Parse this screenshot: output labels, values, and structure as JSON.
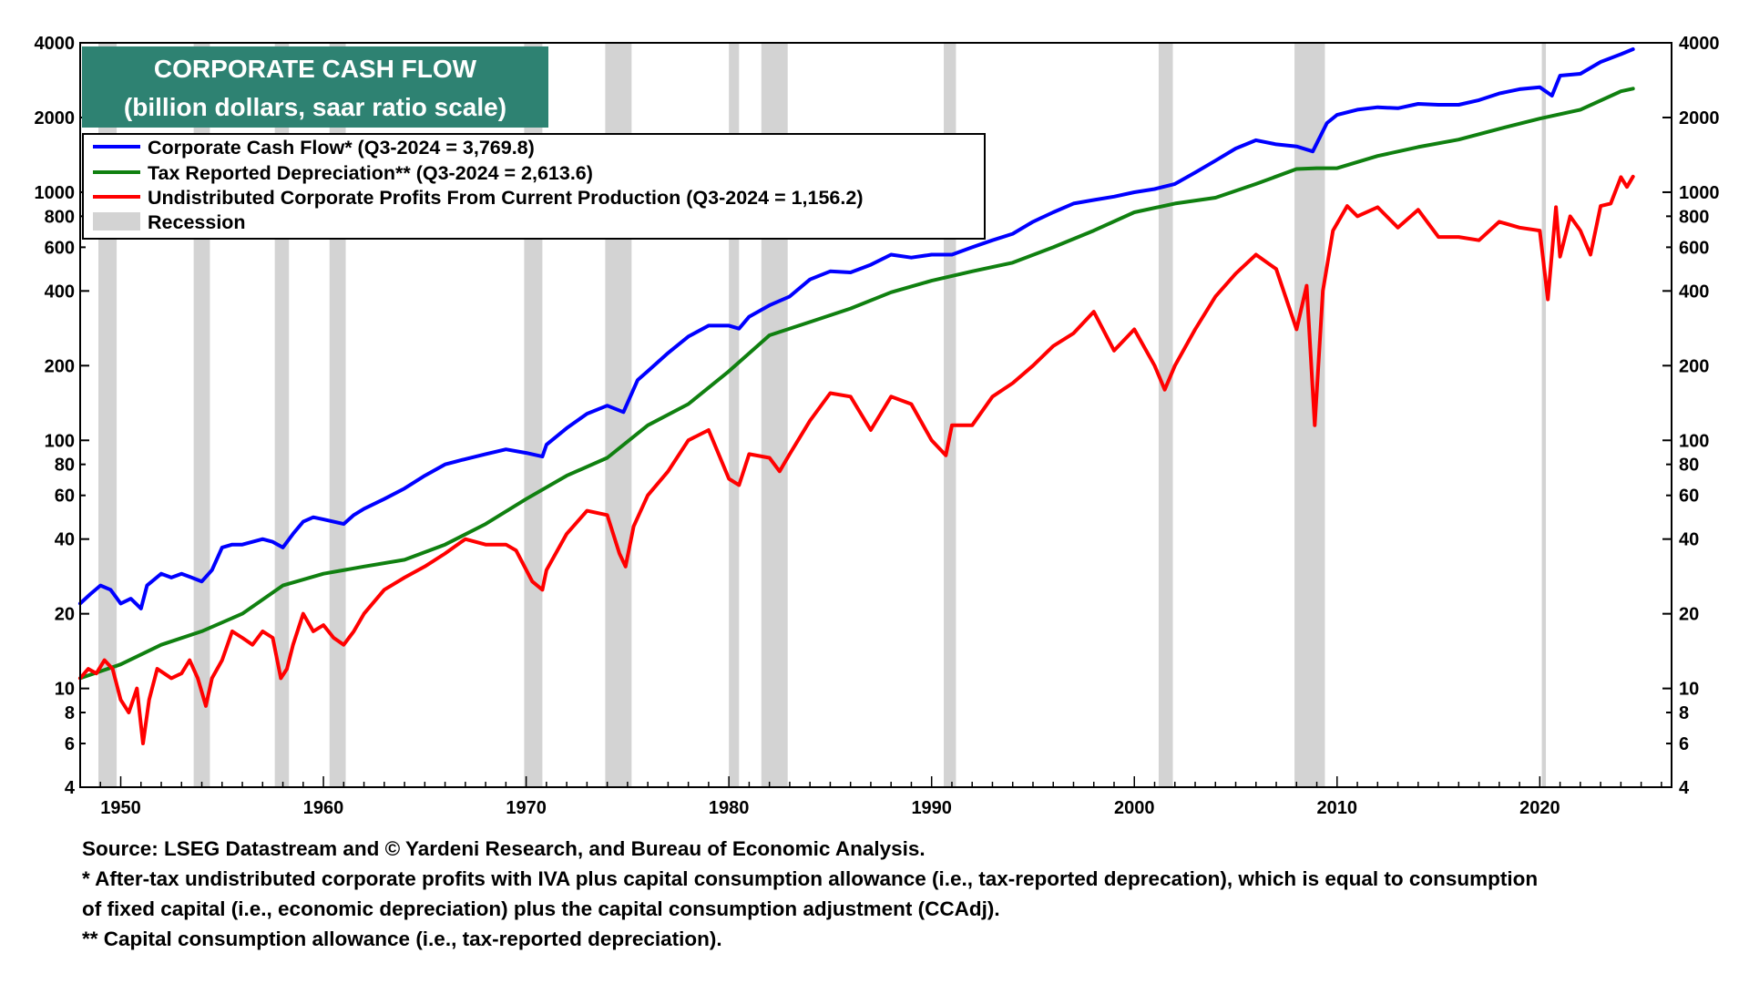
{
  "chart_data": {
    "type": "line",
    "title": "CORPORATE CASH FLOW",
    "subtitle": "(billion dollars, saar ratio scale)",
    "scale": "log",
    "ylim": [
      4,
      4000
    ],
    "xlim": [
      1948,
      2026.5
    ],
    "y_ticks": [
      4,
      6,
      8,
      10,
      20,
      40,
      60,
      80,
      100,
      200,
      400,
      600,
      800,
      1000,
      2000,
      4000
    ],
    "x_ticks": [
      1950,
      1960,
      1970,
      1980,
      1990,
      2000,
      2010,
      2020
    ],
    "recessions": [
      [
        1948.9,
        1949.8
      ],
      [
        1953.6,
        1954.4
      ],
      [
        1957.6,
        1958.3
      ],
      [
        1960.3,
        1961.1
      ],
      [
        1969.9,
        1970.8
      ],
      [
        1973.9,
        1975.2
      ],
      [
        1980.0,
        1980.5
      ],
      [
        1981.6,
        1982.9
      ],
      [
        1990.6,
        1991.2
      ],
      [
        2001.2,
        2001.9
      ],
      [
        2007.9,
        2009.4
      ],
      [
        2020.1,
        2020.3
      ]
    ],
    "series": [
      {
        "name": "Corporate Cash Flow* (Q3-2024 = 3,769.8)",
        "color": "#0000ff",
        "x": [
          1948,
          1948.5,
          1949,
          1949.5,
          1950,
          1950.5,
          1951,
          1951.3,
          1952,
          1952.5,
          1953,
          1953.5,
          1954,
          1954.5,
          1955,
          1955.5,
          1956,
          1956.5,
          1957,
          1957.5,
          1958,
          1958.5,
          1959,
          1959.5,
          1960,
          1960.5,
          1961,
          1961.5,
          1962,
          1963,
          1964,
          1965,
          1966,
          1967,
          1968,
          1969,
          1970,
          1970.8,
          1971,
          1972,
          1973,
          1974,
          1974.8,
          1975.5,
          1976,
          1977,
          1978,
          1979,
          1980,
          1980.5,
          1981,
          1982,
          1983,
          1984,
          1985,
          1986,
          1987,
          1988,
          1989,
          1990,
          1991,
          1992,
          1993,
          1994,
          1995,
          1996,
          1997,
          1998,
          1999,
          2000,
          2001,
          2002,
          2003,
          2004,
          2005,
          2006,
          2007,
          2008,
          2008.8,
          2009.5,
          2010,
          2011,
          2012,
          2013,
          2014,
          2015,
          2016,
          2017,
          2018,
          2019,
          2020,
          2020.6,
          2021,
          2022,
          2023,
          2024,
          2024.6
        ],
        "values": [
          22,
          24,
          26,
          25,
          22,
          23,
          21,
          26,
          29,
          28,
          29,
          28,
          27,
          30,
          37,
          38,
          38,
          39,
          40,
          39,
          37,
          42,
          47,
          49,
          48,
          47,
          46,
          50,
          53,
          58,
          64,
          72,
          80,
          84,
          88,
          92,
          89,
          86,
          96,
          112,
          128,
          138,
          130,
          175,
          190,
          225,
          262,
          290,
          290,
          282,
          315,
          350,
          380,
          445,
          480,
          475,
          510,
          560,
          545,
          560,
          560,
          600,
          640,
          680,
          760,
          830,
          900,
          930,
          960,
          1000,
          1030,
          1080,
          1200,
          1340,
          1500,
          1620,
          1560,
          1530,
          1460,
          1900,
          2050,
          2150,
          2200,
          2180,
          2270,
          2250,
          2250,
          2350,
          2500,
          2600,
          2650,
          2450,
          2950,
          3000,
          3350,
          3600,
          3769.8
        ]
      },
      {
        "name": "Tax Reported Depreciation** (Q3-2024 = 2,613.6)",
        "color": "#108010",
        "x": [
          1948,
          1950,
          1952,
          1954,
          1956,
          1958,
          1960,
          1962,
          1964,
          1966,
          1968,
          1970,
          1972,
          1974,
          1976,
          1978,
          1980,
          1982,
          1984,
          1986,
          1988,
          1990,
          1992,
          1994,
          1996,
          1998,
          2000,
          2002,
          2004,
          2006,
          2008,
          2009,
          2010,
          2012,
          2014,
          2016,
          2018,
          2020,
          2022,
          2024,
          2024.6
        ],
        "values": [
          11,
          12.5,
          15,
          17,
          20,
          26,
          29,
          31,
          33,
          38,
          46,
          58,
          72,
          85,
          115,
          140,
          190,
          265,
          300,
          340,
          395,
          440,
          480,
          520,
          600,
          700,
          830,
          900,
          950,
          1080,
          1240,
          1250,
          1250,
          1400,
          1520,
          1630,
          1800,
          1980,
          2150,
          2550,
          2613.6
        ]
      },
      {
        "name": "Undistributed Corporate Profits From Current Production (Q3-2024 = 1,156.2)",
        "color": "#ff0000",
        "x": [
          1948,
          1948.4,
          1948.8,
          1949.2,
          1949.6,
          1950,
          1950.4,
          1950.8,
          1951.1,
          1951.4,
          1951.8,
          1952.5,
          1953,
          1953.4,
          1953.8,
          1954.2,
          1954.5,
          1955,
          1955.5,
          1956,
          1956.5,
          1957,
          1957.5,
          1957.9,
          1958.2,
          1958.5,
          1959,
          1959.5,
          1960,
          1960.5,
          1961,
          1961.5,
          1962,
          1963,
          1964,
          1965,
          1966,
          1967,
          1968,
          1969,
          1969.5,
          1970.3,
          1970.8,
          1971,
          1972,
          1973,
          1974,
          1974.6,
          1974.9,
          1975.3,
          1976,
          1977,
          1978,
          1979,
          1980,
          1980.5,
          1981,
          1982,
          1982.5,
          1983,
          1984,
          1985,
          1986,
          1987,
          1988,
          1989,
          1990,
          1990.7,
          1991,
          1992,
          1993,
          1994,
          1995,
          1996,
          1997,
          1998,
          1999,
          2000,
          2001,
          2001.5,
          2002,
          2003,
          2004,
          2005,
          2006,
          2007,
          2008,
          2008.5,
          2008.9,
          2009.3,
          2009.8,
          2010.5,
          2011,
          2012,
          2013,
          2014,
          2015,
          2016,
          2017,
          2018,
          2019,
          2020,
          2020.4,
          2020.8,
          2021,
          2021.5,
          2022,
          2022.5,
          2023,
          2023.5,
          2024,
          2024.3,
          2024.6
        ],
        "values": [
          11,
          12,
          11.5,
          13,
          12,
          9,
          8,
          10,
          6,
          9,
          12,
          11,
          11.5,
          13,
          11,
          8.5,
          11,
          13,
          17,
          16,
          15,
          17,
          16,
          11,
          12,
          15,
          20,
          17,
          18,
          16,
          15,
          17,
          20,
          25,
          28,
          31,
          35,
          40,
          38,
          38,
          36,
          27,
          25,
          30,
          42,
          52,
          50,
          35,
          31,
          45,
          60,
          75,
          100,
          110,
          70,
          66,
          88,
          85,
          75,
          88,
          120,
          155,
          150,
          110,
          150,
          140,
          100,
          87,
          115,
          115,
          150,
          170,
          200,
          240,
          270,
          330,
          230,
          280,
          200,
          160,
          200,
          280,
          380,
          470,
          560,
          490,
          280,
          420,
          115,
          400,
          700,
          880,
          800,
          870,
          720,
          850,
          660,
          660,
          640,
          760,
          720,
          700,
          370,
          870,
          550,
          800,
          700,
          560,
          880,
          900,
          1150,
          1050,
          1156.2
        ]
      }
    ],
    "legend": {
      "placement": "top-left",
      "entries": [
        {
          "label": "Corporate Cash Flow* (Q3-2024 = 3,769.8)",
          "color": "#0000ff",
          "kind": "line"
        },
        {
          "label": "Tax Reported Depreciation** (Q3-2024 = 2,613.6)",
          "color": "#108010",
          "kind": "line"
        },
        {
          "label": "Undistributed Corporate Profits From Current Production (Q3-2024 = 1,156.2)",
          "color": "#ff0000",
          "kind": "line"
        },
        {
          "label": "Recession",
          "color": "#d3d3d3",
          "kind": "box"
        }
      ]
    },
    "grid": false,
    "xlabel": "",
    "ylabel": ""
  },
  "colors": {
    "title_bg": "#2e8272",
    "title_fg": "#ffffff",
    "recession": "#d3d3d3",
    "axis": "#000000"
  },
  "footnotes": {
    "source": "Source: LSEG Datastream and © Yardeni Research, and Bureau of Economic Analysis.",
    "note1_line1": "* After-tax undistributed corporate profits with IVA plus capital consumption allowance (i.e., tax-reported deprecation), which is equal to consumption",
    "note1_line2": "of fixed capital (i.e., economic depreciation) plus the capital consumption adjustment (CCAdj).",
    "note2": "** Capital consumption allowance (i.e., tax-reported depreciation)."
  }
}
